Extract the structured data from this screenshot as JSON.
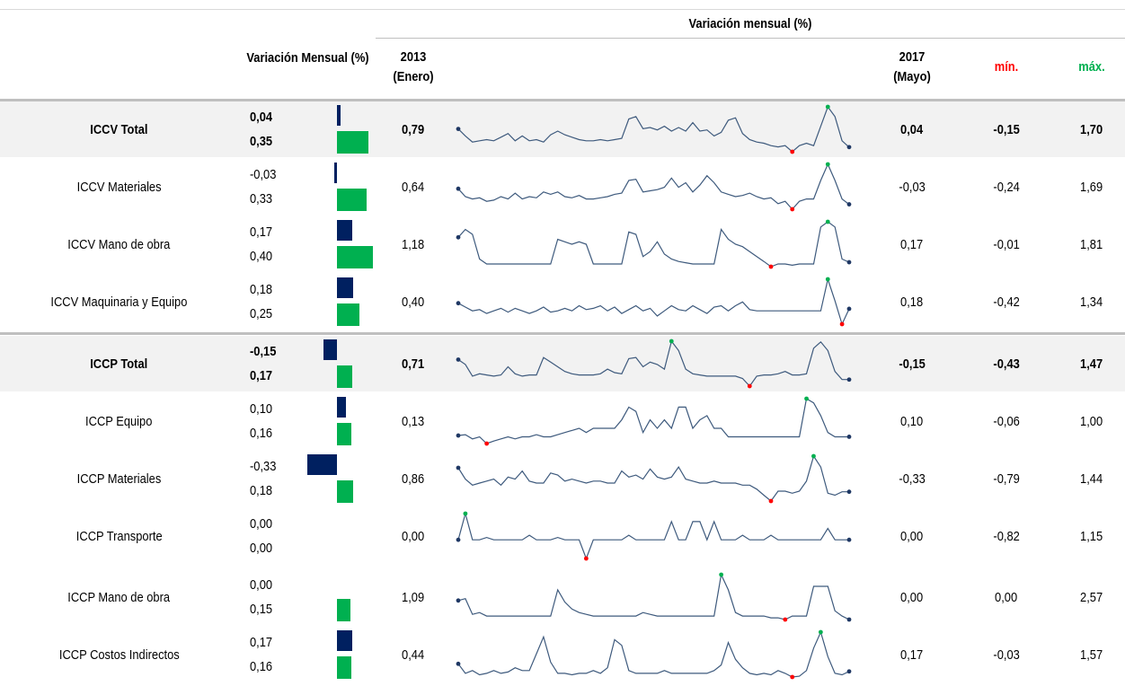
{
  "colors": {
    "bar_current": "#002060",
    "bar_prev": "#00b050",
    "spark_line": "#3e5a7d",
    "spark_min": "#ff0000",
    "spark_max": "#00b050",
    "spark_end": "#1f3864",
    "min_header": "#ff0000",
    "max_header": "#00b050",
    "shade": "#f2f2f2"
  },
  "header": {
    "variation_label": "Variación Mensual (%)",
    "span_label": "Variación mensual (%)",
    "start_label_1": "2013",
    "start_label_2": "(Enero)",
    "end_label_1": "2017",
    "end_label_2": "(Mayo)",
    "min_label": "mín.",
    "max_label": "máx."
  },
  "chart_data": {
    "type": "table",
    "columns": [
      "Variación Mensual (%)",
      "2013 (Enero)",
      "2017 (Mayo)",
      "mín.",
      "máx."
    ],
    "rows": [
      {
        "name": "ICCV Total",
        "bold": true,
        "shaded": true,
        "current": "0,04",
        "previous": "0,35",
        "cur_val": 0.04,
        "prev_val": 0.35,
        "start": "0,79",
        "end": "0,04",
        "min": "-0,15",
        "max": "1,70",
        "series": [
          0.79,
          0.5,
          0.25,
          0.3,
          0.35,
          0.3,
          0.45,
          0.6,
          0.3,
          0.5,
          0.3,
          0.35,
          0.25,
          0.55,
          0.7,
          0.55,
          0.45,
          0.35,
          0.3,
          0.3,
          0.35,
          0.3,
          0.35,
          0.4,
          1.2,
          1.3,
          0.8,
          0.85,
          0.75,
          0.9,
          0.7,
          0.85,
          0.7,
          1.05,
          0.7,
          0.75,
          0.5,
          0.65,
          1.15,
          1.25,
          0.6,
          0.35,
          0.25,
          0.2,
          0.1,
          0.05,
          0.1,
          -0.15,
          0.1,
          0.2,
          0.1,
          0.9,
          1.7,
          1.3,
          0.3,
          0.04
        ]
      },
      {
        "name": "ICCV Materiales",
        "bold": false,
        "shaded": false,
        "current": "-0,03",
        "previous": "0,33",
        "cur_val": -0.03,
        "prev_val": 0.33,
        "start": "0,64",
        "end": "-0,03",
        "min": "-0,24",
        "max": "1,69",
        "series": [
          0.64,
          0.3,
          0.2,
          0.25,
          0.1,
          0.15,
          0.3,
          0.2,
          0.45,
          0.2,
          0.3,
          0.25,
          0.5,
          0.4,
          0.5,
          0.3,
          0.25,
          0.35,
          0.2,
          0.2,
          0.25,
          0.3,
          0.4,
          0.45,
          1.0,
          1.05,
          0.5,
          0.55,
          0.6,
          0.7,
          1.1,
          0.7,
          0.9,
          0.5,
          0.8,
          1.2,
          0.9,
          0.5,
          0.4,
          0.3,
          0.35,
          0.45,
          0.3,
          0.2,
          0.25,
          0.0,
          0.1,
          -0.24,
          0.1,
          0.2,
          0.2,
          1.0,
          1.69,
          1.0,
          0.2,
          -0.03
        ]
      },
      {
        "name": "ICCV Mano de obra",
        "bold": false,
        "shaded": false,
        "current": "0,17",
        "previous": "0,40",
        "cur_val": 0.17,
        "prev_val": 0.4,
        "start": "1,18",
        "end": "0,17",
        "min": "-0,01",
        "max": "1,81",
        "series": [
          1.18,
          1.5,
          1.3,
          0.3,
          0.1,
          0.1,
          0.1,
          0.1,
          0.1,
          0.1,
          0.1,
          0.1,
          0.1,
          0.1,
          1.1,
          1.0,
          0.9,
          1.0,
          0.9,
          0.1,
          0.1,
          0.1,
          0.1,
          0.1,
          1.4,
          1.3,
          0.4,
          0.6,
          1.0,
          0.5,
          0.3,
          0.2,
          0.15,
          0.1,
          0.1,
          0.1,
          0.1,
          1.5,
          1.1,
          0.9,
          0.8,
          0.6,
          0.4,
          0.2,
          -0.01,
          0.1,
          0.1,
          0.05,
          0.1,
          0.1,
          0.1,
          1.6,
          1.81,
          1.6,
          0.3,
          0.17
        ]
      },
      {
        "name": "ICCV Maquinaria y Equipo",
        "bold": false,
        "shaded": false,
        "current": "0,18",
        "previous": "0,25",
        "cur_val": 0.18,
        "prev_val": 0.25,
        "start": "0,40",
        "end": "0,18",
        "min": "-0,42",
        "max": "1,34",
        "series": [
          0.4,
          0.25,
          0.1,
          0.15,
          0.0,
          0.1,
          0.2,
          0.05,
          0.2,
          0.1,
          0.0,
          0.1,
          0.25,
          0.05,
          0.1,
          0.2,
          0.1,
          0.3,
          0.15,
          0.2,
          0.3,
          0.1,
          0.25,
          0.0,
          0.15,
          0.3,
          0.1,
          0.2,
          -0.1,
          0.1,
          0.3,
          0.15,
          0.1,
          0.3,
          0.15,
          0.0,
          0.25,
          0.3,
          0.1,
          0.3,
          0.45,
          0.15,
          0.1,
          0.1,
          0.1,
          0.1,
          0.1,
          0.1,
          0.1,
          0.1,
          0.1,
          0.1,
          1.34,
          0.5,
          -0.42,
          0.18
        ]
      },
      {
        "name": "ICCP Total",
        "bold": true,
        "shaded": true,
        "current": "-0,15",
        "previous": "0,17",
        "cur_val": -0.15,
        "prev_val": 0.17,
        "start": "0,71",
        "end": "-0,15",
        "min": "-0,43",
        "max": "1,47",
        "series": [
          0.71,
          0.5,
          0.0,
          0.1,
          0.05,
          0.0,
          0.05,
          0.4,
          0.1,
          0.0,
          0.05,
          0.05,
          0.8,
          0.6,
          0.4,
          0.2,
          0.1,
          0.05,
          0.05,
          0.05,
          0.1,
          0.3,
          0.15,
          0.1,
          0.75,
          0.8,
          0.4,
          0.6,
          0.5,
          0.3,
          1.5,
          1.1,
          0.3,
          0.1,
          0.05,
          0.0,
          0.0,
          0.0,
          0.0,
          0.0,
          -0.1,
          -0.43,
          0.0,
          0.05,
          0.05,
          0.1,
          0.2,
          0.05,
          0.05,
          0.1,
          1.2,
          1.47,
          1.1,
          0.2,
          -0.15,
          -0.15
        ]
      },
      {
        "name": "ICCP Equipo",
        "bold": false,
        "shaded": false,
        "current": "0,10",
        "previous": "0,16",
        "cur_val": 0.1,
        "prev_val": 0.16,
        "start": "0,13",
        "end": "0,10",
        "min": "-0,06",
        "max": "1,00",
        "series": [
          0.13,
          0.15,
          0.05,
          0.1,
          -0.06,
          0.0,
          0.05,
          0.1,
          0.05,
          0.1,
          0.1,
          0.15,
          0.1,
          0.1,
          0.15,
          0.2,
          0.25,
          0.3,
          0.2,
          0.3,
          0.3,
          0.3,
          0.3,
          0.5,
          0.8,
          0.7,
          0.2,
          0.5,
          0.3,
          0.5,
          0.3,
          0.8,
          0.8,
          0.3,
          0.5,
          0.6,
          0.3,
          0.3,
          0.1,
          0.1,
          0.1,
          0.1,
          0.1,
          0.1,
          0.1,
          0.1,
          0.1,
          0.1,
          0.1,
          1.0,
          0.9,
          0.6,
          0.2,
          0.1,
          0.1,
          0.1
        ]
      },
      {
        "name": "ICCP Materiales",
        "bold": false,
        "shaded": false,
        "current": "-0,33",
        "previous": "0,18",
        "cur_val": -0.33,
        "prev_val": 0.18,
        "start": "0,86",
        "end": "-0,33",
        "min": "-0,79",
        "max": "1,44",
        "series": [
          0.86,
          0.3,
          0.0,
          0.1,
          0.2,
          0.3,
          0.0,
          0.4,
          0.3,
          0.7,
          0.2,
          0.1,
          0.1,
          0.6,
          0.5,
          0.2,
          0.3,
          0.2,
          0.1,
          0.2,
          0.2,
          0.1,
          0.1,
          0.7,
          0.4,
          0.5,
          0.3,
          0.8,
          0.4,
          0.3,
          0.4,
          0.9,
          0.3,
          0.2,
          0.1,
          0.1,
          0.2,
          0.1,
          0.1,
          0.1,
          0.0,
          0.0,
          -0.2,
          -0.5,
          -0.79,
          -0.3,
          -0.3,
          -0.4,
          -0.3,
          0.2,
          1.44,
          0.9,
          -0.4,
          -0.5,
          -0.33,
          -0.33
        ]
      },
      {
        "name": "ICCP Transporte",
        "bold": false,
        "shaded": false,
        "current": "0,00",
        "previous": "0,00",
        "cur_val": 0.0,
        "prev_val": 0.0,
        "start": "0,00",
        "end": "0,00",
        "min": "-0,82",
        "max": "1,15",
        "series": [
          0.0,
          1.15,
          0.0,
          0.0,
          0.1,
          0.0,
          0.0,
          0.0,
          0.0,
          0.0,
          0.2,
          0.0,
          0.0,
          0.0,
          0.1,
          0.0,
          0.0,
          0.0,
          -0.82,
          0.0,
          0.0,
          0.0,
          0.0,
          0.0,
          0.2,
          0.0,
          0.0,
          0.0,
          0.0,
          0.0,
          0.8,
          0.0,
          0.0,
          0.8,
          0.8,
          0.0,
          0.8,
          0.0,
          0.0,
          0.0,
          0.2,
          0.0,
          0.0,
          0.0,
          0.2,
          0.0,
          0.0,
          0.0,
          0.0,
          0.0,
          0.0,
          0.0,
          0.5,
          0.0,
          0.0,
          0.0
        ]
      },
      {
        "name": "ICCP Mano de obra",
        "bold": false,
        "shaded": false,
        "current": "0,00",
        "previous": "0,15",
        "cur_val": 0.0,
        "prev_val": 0.15,
        "start": "1,09",
        "end": "0,00",
        "min": "0,00",
        "max": "2,57",
        "series": [
          1.09,
          1.2,
          0.3,
          0.4,
          0.2,
          0.2,
          0.2,
          0.2,
          0.2,
          0.2,
          0.2,
          0.2,
          0.2,
          0.2,
          1.7,
          1.0,
          0.6,
          0.4,
          0.3,
          0.2,
          0.2,
          0.2,
          0.2,
          0.2,
          0.2,
          0.2,
          0.4,
          0.3,
          0.2,
          0.2,
          0.2,
          0.2,
          0.2,
          0.2,
          0.2,
          0.2,
          0.2,
          2.57,
          1.7,
          0.4,
          0.2,
          0.2,
          0.2,
          0.2,
          0.1,
          0.1,
          0.0,
          0.2,
          0.2,
          0.2,
          1.9,
          1.9,
          1.9,
          0.5,
          0.2,
          0.0
        ]
      },
      {
        "name": "ICCP Costos Indirectos",
        "bold": false,
        "shaded": false,
        "current": "0,17",
        "previous": "0,16",
        "cur_val": 0.17,
        "prev_val": 0.16,
        "start": "0,44",
        "end": "0,17",
        "min": "-0,03",
        "max": "1,57",
        "series": [
          0.44,
          0.1,
          0.2,
          0.05,
          0.1,
          0.2,
          0.1,
          0.15,
          0.3,
          0.2,
          0.2,
          0.8,
          1.4,
          0.5,
          0.1,
          0.1,
          0.05,
          0.1,
          0.1,
          0.2,
          0.1,
          0.3,
          1.3,
          1.1,
          0.2,
          0.1,
          0.1,
          0.1,
          0.1,
          0.2,
          0.1,
          0.1,
          0.1,
          0.1,
          0.1,
          0.1,
          0.2,
          0.4,
          1.2,
          0.6,
          0.3,
          0.1,
          0.05,
          0.1,
          0.05,
          0.2,
          0.1,
          -0.03,
          0.0,
          0.2,
          1.0,
          1.57,
          0.7,
          0.1,
          0.05,
          0.17
        ]
      }
    ]
  }
}
